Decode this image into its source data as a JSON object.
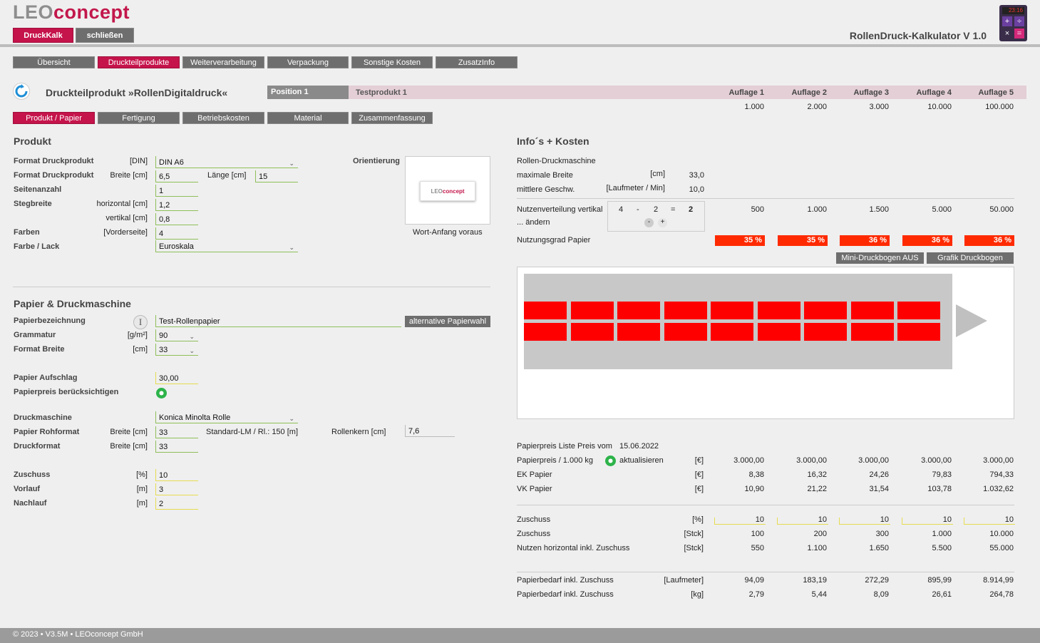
{
  "header": {
    "logo_part1": "LEO",
    "logo_part2": "concept",
    "btn_druckkalk": "DruckKalk",
    "btn_schliessen": "schließen",
    "app_title": "RollenDruck-Kalkulator V 1.0",
    "calc_display": "23:16",
    "calc_keys": [
      "+",
      "÷",
      "×",
      "="
    ]
  },
  "nav": {
    "tabs": [
      "Übersicht",
      "Druckteilprodukte",
      "Weiterverarbeitung",
      "Verpackung",
      "Sonstige Kosten",
      "ZusatzInfo"
    ],
    "active": 1
  },
  "product_header": {
    "title": "Druckteilprodukt »RollenDigitaldruck«",
    "position": "Position 1",
    "product_name": "Testprodukt 1",
    "auflage_labels": [
      "Auflage 1",
      "Auflage 2",
      "Auflage 3",
      "Auflage 4",
      "Auflage 5"
    ],
    "auflage_values": [
      "1.000",
      "2.000",
      "3.000",
      "10.000",
      "100.000"
    ]
  },
  "subtabs": {
    "items": [
      "Produkt / Papier",
      "Fertigung",
      "Betriebskosten",
      "Material",
      "Zusammenfassung"
    ],
    "active": 0
  },
  "produkt": {
    "heading": "Produkt",
    "format_label": "Format Druckprodukt",
    "format_unit": "[DIN]",
    "format_value": "DIN A6",
    "format2_label": "Format Druckprodukt",
    "breite_label": "Breite [cm]",
    "breite_value": "6,5",
    "laenge_label": "Länge [cm]",
    "laenge_value": "15",
    "seiten_label": "Seitenanzahl",
    "seiten_value": "1",
    "steg_label": "Stegbreite",
    "steg_h_label": "horizontal [cm]",
    "steg_h_value": "1,2",
    "steg_v_label": "vertikal [cm]",
    "steg_v_value": "0,8",
    "farben_label": "Farben",
    "farben_unit": "[Vorderseite]",
    "farben_value": "4",
    "farbe_lack_label": "Farbe / Lack",
    "farbe_lack_value": "Euroskala",
    "orientierung_label": "Orientierung",
    "orientierung_value": "Wort-Anfang voraus",
    "thumb_logo1": "LEO",
    "thumb_logo2": "concept"
  },
  "papier": {
    "heading": "Papier & Druckmaschine",
    "bez_label": "Papierbezeichnung",
    "bez_value": "Test-Rollenpapier",
    "alt_btn": "alternative Papierwahl",
    "info_icon": "I",
    "gram_label": "Grammatur",
    "gram_unit": "[g/m²]",
    "gram_value": "90",
    "fbreite_label": "Format Breite",
    "fbreite_unit": "[cm]",
    "fbreite_value": "33",
    "aufschlag_label": "Papier Aufschlag",
    "aufschlag_value": "30,00",
    "preis_label": "Papierpreis berücksichtigen",
    "dm_label": "Druckmaschine",
    "dm_value": "Konica Minolta Rolle",
    "rohformat_label": "Papier Rohformat",
    "rohformat_unit": "Breite [cm]",
    "rohformat_value": "33",
    "standard_lm": "Standard-LM / Rl.: 150 [m]",
    "rollenkern_label": "Rollenkern [cm]",
    "rollenkern_value": "7,6",
    "druckformat_label": "Druckformat",
    "druckformat_unit": "Breite [cm]",
    "druckformat_value": "33",
    "zuschuss_label": "Zuschuss",
    "zuschuss_unit": "[%]",
    "zuschuss_value": "10",
    "vorlauf_label": "Vorlauf",
    "vorlauf_unit": "[m]",
    "vorlauf_value": "3",
    "nachlauf_label": "Nachlauf",
    "nachlauf_unit": "[m]",
    "nachlauf_value": "2"
  },
  "info": {
    "heading": "Info´s + Kosten",
    "machine_label": "Rollen-Druckmaschine",
    "maxb_label": "maximale Breite",
    "maxb_unit": "[cm]",
    "maxb_value": "33,0",
    "speed_label": "mittlere Geschw.",
    "speed_unit": "[Laufmeter / Min]",
    "speed_value": "10,0",
    "nutzen_label": "Nutzenverteilung vertikal",
    "nutzen_aendern": "... ändern",
    "nutzen_a": "4",
    "nutzen_minus": "-",
    "nutzen_b": "2",
    "nutzen_eq": "=",
    "nutzen_c": "2",
    "stepper_minus": "-",
    "stepper_plus": "+",
    "nutzen_values": [
      "500",
      "1.000",
      "1.500",
      "5.000",
      "50.000"
    ],
    "nutzungsgrad_label": "Nutzungsgrad Papier",
    "nutzungsgrad_values": [
      "35 %",
      "35 %",
      "36 %",
      "36 %",
      "36 %"
    ],
    "mini_btn": "Mini-Druckbogen AUS",
    "grafik_btn": "Grafik Druckbogen",
    "grid_cols": 9,
    "grid_rows": 2,
    "preisliste_label": "Papierpreis Liste Preis vom",
    "preisliste_date": "15.06.2022",
    "rows_a": [
      {
        "label": "Papierpreis / 1.000 kg",
        "extra": "aktualisieren",
        "unit": "[€]",
        "values": [
          "3.000,00",
          "3.000,00",
          "3.000,00",
          "3.000,00",
          "3.000,00"
        ]
      },
      {
        "label": "EK Papier",
        "unit": "[€]",
        "values": [
          "8,38",
          "16,32",
          "24,26",
          "79,83",
          "794,33"
        ]
      },
      {
        "label": "VK Papier",
        "unit": "[€]",
        "values": [
          "10,90",
          "21,22",
          "31,54",
          "103,78",
          "1.032,62"
        ]
      }
    ],
    "rows_b": [
      {
        "label": "Zuschuss",
        "unit": "[%]",
        "values": [
          "10",
          "10",
          "10",
          "10",
          "10"
        ]
      },
      {
        "label": "Zuschuss",
        "unit": "[Stck]",
        "values": [
          "100",
          "200",
          "300",
          "1.000",
          "10.000"
        ]
      },
      {
        "label": "Nutzen horizontal inkl. Zuschuss",
        "unit": "[Stck]",
        "values": [
          "550",
          "1.100",
          "1.650",
          "5.500",
          "55.000"
        ]
      }
    ],
    "rows_c": [
      {
        "label": "Papierbedarf inkl. Zuschuss",
        "unit": "[Laufmeter]",
        "values": [
          "94,09",
          "183,19",
          "272,29",
          "895,99",
          "8.914,99"
        ]
      },
      {
        "label": "Papierbedarf inkl. Zuschuss",
        "unit": "[kg]",
        "values": [
          "2,79",
          "5,44",
          "8,09",
          "26,61",
          "264,78"
        ]
      }
    ]
  },
  "footer": {
    "text": "© 2023 • V3.5M • LEOconcept GmbH"
  },
  "colors": {
    "accent": "#c5134b",
    "tab_gray": "#6e6e6e",
    "util_red": "#ff2a00",
    "grid_red": "#ff0000"
  }
}
